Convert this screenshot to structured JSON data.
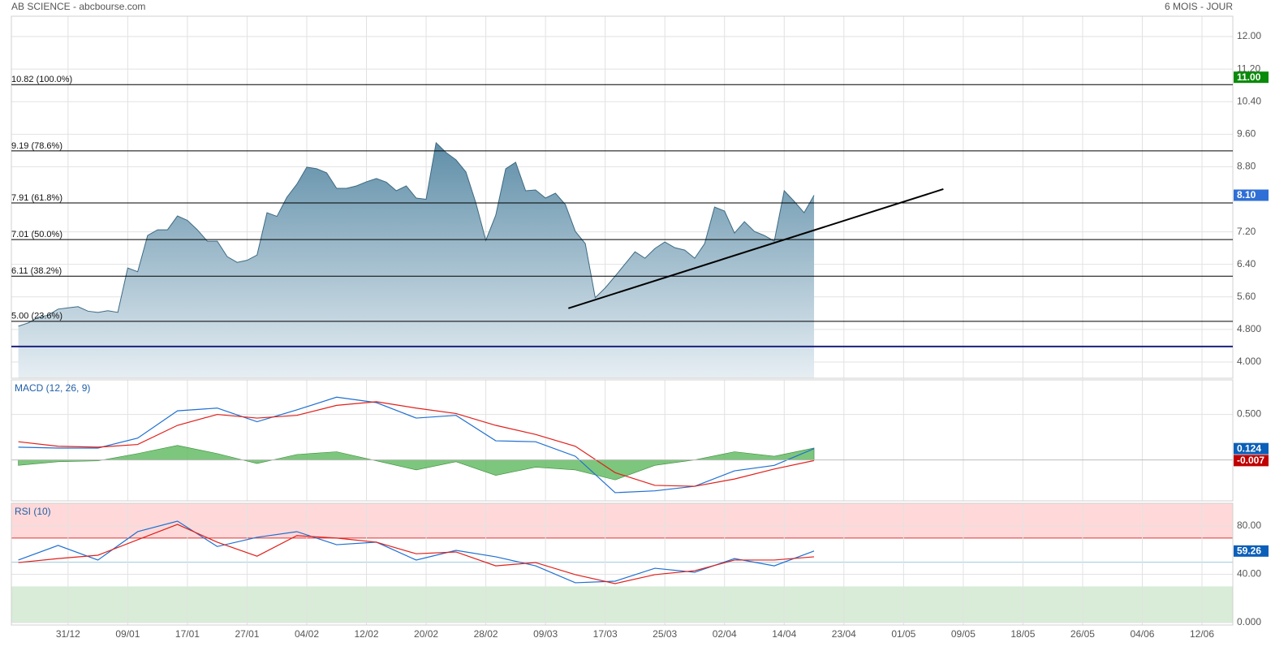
{
  "header": {
    "title": "AB SCIENCE - abcbourse.com",
    "period": "6 MOIS - JOUR"
  },
  "chart_data": [
    {
      "type": "area",
      "x": [
        -5,
        -4,
        -3,
        -2,
        -1,
        0,
        1,
        2,
        3,
        4,
        5,
        6,
        7,
        8,
        9,
        10,
        11,
        12,
        13,
        14,
        15,
        16,
        17,
        18,
        19,
        20,
        21,
        22,
        23,
        24,
        25,
        26,
        27,
        28,
        29,
        30,
        31,
        32,
        33,
        34,
        35,
        36,
        37,
        38,
        39,
        40,
        41,
        42,
        43,
        44,
        45,
        46,
        47,
        48,
        49,
        50,
        51,
        52,
        53,
        54,
        55,
        56,
        57,
        58,
        59,
        60,
        61,
        62,
        63,
        64,
        65,
        66,
        67,
        68,
        69,
        70,
        71,
        72,
        73,
        74,
        75
      ],
      "values": [
        4.88,
        4.96,
        5.1,
        5.15,
        5.3,
        5.33,
        5.36,
        5.25,
        5.22,
        5.26,
        5.22,
        6.31,
        6.22,
        7.11,
        7.25,
        7.25,
        7.59,
        7.48,
        7.25,
        6.97,
        6.97,
        6.59,
        6.45,
        6.5,
        6.63,
        7.67,
        7.58,
        8.05,
        8.37,
        8.79,
        8.75,
        8.65,
        8.27,
        8.27,
        8.33,
        8.43,
        8.51,
        8.42,
        8.21,
        8.33,
        8.03,
        8.0,
        9.39,
        9.15,
        8.97,
        8.67,
        7.91,
        6.99,
        7.61,
        8.75,
        8.91,
        8.21,
        8.23,
        8.03,
        8.15,
        7.87,
        7.21,
        6.91,
        5.58,
        5.82,
        6.11,
        6.41,
        6.71,
        6.55,
        6.79,
        6.95,
        6.81,
        6.75,
        6.55,
        6.91,
        7.81,
        7.71,
        7.17,
        7.45,
        7.21,
        7.11,
        6.97,
        8.21,
        7.95,
        7.67,
        8.1
      ],
      "color": "#3d6a82",
      "xlim": [
        -5.7,
        117.1
      ],
      "xticks": [
        {
          "value": 0,
          "label": "31/12"
        },
        {
          "value": 6,
          "label": "09/01"
        },
        {
          "value": 12,
          "label": "17/01"
        },
        {
          "value": 18,
          "label": "27/01"
        },
        {
          "value": 24,
          "label": "04/02"
        },
        {
          "value": 30,
          "label": "12/02"
        },
        {
          "value": 36,
          "label": "20/02"
        },
        {
          "value": 42,
          "label": "28/02"
        },
        {
          "value": 48,
          "label": "09/03"
        },
        {
          "value": 54,
          "label": "17/03"
        },
        {
          "value": 60,
          "label": "25/03"
        },
        {
          "value": 66,
          "label": "02/04"
        },
        {
          "value": 72,
          "label": "14/04"
        },
        {
          "value": 78,
          "label": "23/04"
        },
        {
          "value": 84,
          "label": "01/05"
        },
        {
          "value": 90,
          "label": "09/05"
        },
        {
          "value": 96,
          "label": "18/05"
        },
        {
          "value": 102,
          "label": "26/05"
        },
        {
          "value": 108,
          "label": "04/06"
        },
        {
          "value": 114,
          "label": "12/06"
        }
      ],
      "ylim": [
        3.6,
        12.5
      ],
      "yticks": [
        {
          "value": 12,
          "label": "12.00"
        },
        {
          "value": 11.2,
          "label": "11.20"
        },
        {
          "value": 10.4,
          "label": "10.40"
        },
        {
          "value": 9.6,
          "label": "9.60"
        },
        {
          "value": 8.8,
          "label": "8.80"
        },
        {
          "value": 7.2,
          "label": "7.20"
        },
        {
          "value": 6.4,
          "label": "6.40"
        },
        {
          "value": 5.6,
          "label": "5.60"
        },
        {
          "value": 4.8,
          "label": "4.800"
        },
        {
          "value": 4,
          "label": "4.000"
        }
      ],
      "grid": true,
      "levels": [
        {
          "value": 10.82,
          "label": "10.82  (100.0%)"
        },
        {
          "value": 9.19,
          "label": "9.19  (78.6%)"
        },
        {
          "value": 7.91,
          "label": "7.91  (61.8%)"
        },
        {
          "value": 7.01,
          "label": "7.01  (50.0%)"
        },
        {
          "value": 6.11,
          "label": "6.11  (38.2%)"
        },
        {
          "value": 5.0,
          "label": "5.00  (23.6%)"
        }
      ],
      "reference_line": {
        "value": 4.38,
        "color": "#1a237e"
      },
      "trendline": {
        "x": [
          50.3,
          88
        ],
        "y": [
          5.32,
          8.25
        ],
        "color": "#000000"
      },
      "badges": [
        {
          "value": 11.0,
          "label": "11.00",
          "color": "#0a8a0a"
        },
        {
          "value": 8.1,
          "label": "8.10",
          "color": "#2f6fd6"
        }
      ]
    },
    {
      "type": "line",
      "title": "MACD (12, 26, 9)",
      "x": [
        -5,
        -1,
        3,
        7,
        11,
        15,
        19,
        23,
        27,
        31,
        35,
        39,
        43,
        47,
        51,
        55,
        59,
        63,
        67,
        71,
        75
      ],
      "series": [
        {
          "name": "MACD",
          "color": "#1f6fd1",
          "values": [
            0.14,
            0.13,
            0.13,
            0.24,
            0.54,
            0.57,
            0.42,
            0.55,
            0.69,
            0.63,
            0.46,
            0.49,
            0.21,
            0.2,
            0.04,
            -0.36,
            -0.34,
            -0.29,
            -0.12,
            -0.06,
            0.124
          ]
        },
        {
          "name": "Signal",
          "color": "#e0201b",
          "values": [
            0.2,
            0.15,
            0.14,
            0.17,
            0.38,
            0.5,
            0.46,
            0.49,
            0.6,
            0.64,
            0.57,
            0.51,
            0.38,
            0.28,
            0.15,
            -0.14,
            -0.28,
            -0.29,
            -0.21,
            -0.1,
            -0.007
          ]
        },
        {
          "name": "Histogram",
          "color": "#5cb85c",
          "style": "area",
          "values": [
            -0.06,
            -0.02,
            -0.01,
            0.07,
            0.16,
            0.07,
            -0.04,
            0.06,
            0.09,
            -0.01,
            -0.11,
            -0.02,
            -0.17,
            -0.08,
            -0.11,
            -0.22,
            -0.06,
            0,
            0.09,
            0.04,
            0.131
          ]
        }
      ],
      "ylim": [
        -0.45,
        0.88
      ],
      "yticks": [
        {
          "value": 0.5,
          "label": "0.500"
        }
      ],
      "grid": true,
      "badges": [
        {
          "value": 0.124,
          "label": "0.124",
          "color": "#0b5fb8"
        },
        {
          "value": -0.007,
          "label": "-0.007",
          "color": "#c00000"
        }
      ]
    },
    {
      "type": "line",
      "title": "RSI (10)",
      "x": [
        -5,
        -1,
        3,
        7,
        11,
        15,
        19,
        23,
        27,
        31,
        35,
        39,
        43,
        47,
        51,
        55,
        59,
        63,
        67,
        71,
        75
      ],
      "series": [
        {
          "name": "RSI",
          "color": "#1f6fd1",
          "values": [
            51.8,
            63.9,
            51.8,
            75.3,
            84,
            63,
            70.6,
            75.3,
            64.5,
            66.6,
            51.8,
            59.8,
            54.5,
            47,
            33,
            34.3,
            45,
            41.7,
            53,
            47,
            59.26
          ]
        },
        {
          "name": "Moyenne",
          "color": "#e0201b",
          "values": [
            49.7,
            53,
            55.8,
            68.6,
            81.3,
            66.6,
            55,
            72,
            70,
            66.6,
            57,
            58.5,
            47,
            49.7,
            39.7,
            32.3,
            39.7,
            43,
            51.8,
            51.8,
            54.5
          ]
        }
      ],
      "ylim": [
        -2,
        98.8
      ],
      "yticks": [
        {
          "value": 80,
          "label": "80.00"
        },
        {
          "value": 40,
          "label": "40.00"
        },
        {
          "value": 0,
          "label": "0.000"
        }
      ],
      "grid": true,
      "zones": [
        {
          "range": [
            70,
            100
          ],
          "color": "#ffd9d9",
          "edge": "#e03030"
        },
        {
          "range": [
            0,
            30
          ],
          "color": "#d8ecd8",
          "edge": "#2e8b2e"
        }
      ],
      "midline": {
        "value": 50,
        "color": "#9cc9e0"
      },
      "badges": [
        {
          "value": 59.26,
          "label": "59.26",
          "color": "#0b5fb8"
        }
      ]
    }
  ]
}
